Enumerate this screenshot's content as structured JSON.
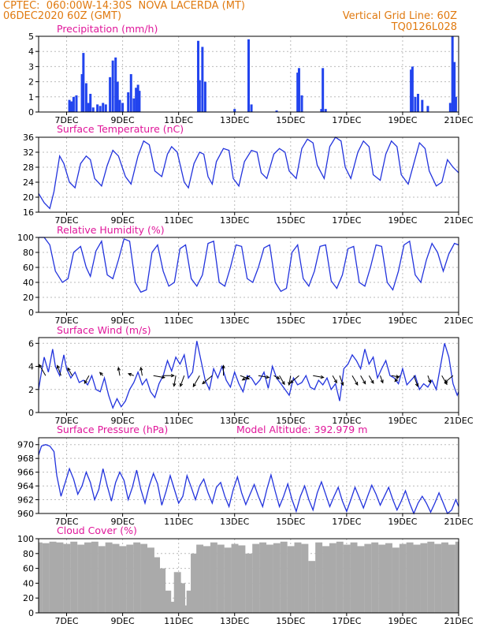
{
  "header": {
    "line1": "CPTEC:  060:00W-14:30S  NOVA LACERDA (MT)",
    "line2": "06DEC2020 60Z (GMT)",
    "grid_note": "Vertical Grid Line: 60Z",
    "code": "TQ0126L028"
  },
  "colors": {
    "header": "#e07a10",
    "title": "#e0169a",
    "line": "#2233dd",
    "bar": "#2244ee",
    "cloud": "#aaaaaa",
    "grid": "#bbbbbb"
  },
  "x_tick_labels": [
    "7DEC",
    "9DEC",
    "11DEC",
    "13DEC",
    "15DEC",
    "17DEC",
    "19DEC",
    "21DEC"
  ],
  "chart_data": [
    {
      "type": "bar",
      "title": "Precipitation (mm/h)",
      "ylim": [
        0,
        5
      ],
      "yticks": [
        0,
        1,
        2,
        3,
        4,
        5
      ],
      "xlim": [
        6.0,
        21.0
      ],
      "x": [
        7.1,
        7.18,
        7.25,
        7.35,
        7.55,
        7.6,
        7.7,
        7.78,
        7.85,
        7.95,
        8.1,
        8.2,
        8.3,
        8.4,
        8.55,
        8.65,
        8.75,
        8.82,
        8.9,
        9.0,
        9.2,
        9.3,
        9.4,
        9.48,
        9.55,
        9.6,
        11.7,
        11.75,
        11.85,
        11.95,
        13.0,
        13.5,
        13.6,
        14.5,
        15.25,
        15.3,
        15.4,
        16.1,
        16.15,
        16.25,
        19.3,
        19.35,
        19.45,
        19.55,
        19.7,
        19.9,
        20.7,
        20.78,
        20.85,
        20.9
      ],
      "values": [
        0.8,
        0.7,
        1.0,
        1.1,
        2.5,
        3.9,
        1.9,
        0.6,
        1.2,
        0.3,
        0.5,
        0.4,
        0.6,
        0.5,
        2.3,
        3.4,
        3.6,
        2.0,
        0.8,
        0.6,
        1.3,
        2.5,
        0.9,
        1.6,
        1.8,
        1.4,
        4.7,
        2.1,
        4.3,
        2.0,
        0.2,
        4.8,
        0.5,
        0.1,
        2.6,
        2.9,
        1.1,
        0.2,
        2.9,
        0.2,
        2.8,
        3.0,
        1.0,
        1.2,
        0.8,
        0.4,
        0.6,
        5.0,
        3.3,
        1.0
      ]
    },
    {
      "type": "line",
      "title": "Surface Temperature (nC)",
      "ylim": [
        16,
        36
      ],
      "yticks": [
        16,
        20,
        24,
        28,
        32,
        36
      ],
      "xlim": [
        6.0,
        21.0
      ],
      "x": [
        6.0,
        6.2,
        6.4,
        6.55,
        6.75,
        6.9,
        7.1,
        7.3,
        7.5,
        7.7,
        7.85,
        8.0,
        8.25,
        8.45,
        8.65,
        8.85,
        9.1,
        9.3,
        9.55,
        9.75,
        9.95,
        10.15,
        10.4,
        10.6,
        10.75,
        10.95,
        11.2,
        11.35,
        11.55,
        11.75,
        11.9,
        12.05,
        12.2,
        12.35,
        12.6,
        12.8,
        12.95,
        13.15,
        13.35,
        13.6,
        13.8,
        13.95,
        14.15,
        14.4,
        14.6,
        14.8,
        14.95,
        15.2,
        15.4,
        15.6,
        15.8,
        15.95,
        16.2,
        16.4,
        16.6,
        16.8,
        16.95,
        17.15,
        17.4,
        17.6,
        17.8,
        17.95,
        18.2,
        18.4,
        18.6,
        18.8,
        18.95,
        19.2,
        19.4,
        19.6,
        19.8,
        19.95,
        20.2,
        20.4,
        20.6,
        20.8,
        21.0
      ],
      "values": [
        21.0,
        18.5,
        17.0,
        21.5,
        31.0,
        29.0,
        24.0,
        22.5,
        29.0,
        31.0,
        30.0,
        25.0,
        23.0,
        28.5,
        32.5,
        31.0,
        25.5,
        23.5,
        31.0,
        35.0,
        34.0,
        27.0,
        25.5,
        31.5,
        33.5,
        32.0,
        24.0,
        22.5,
        29.0,
        32.0,
        31.5,
        25.5,
        23.5,
        29.5,
        33.0,
        32.5,
        25.0,
        23.0,
        29.5,
        32.5,
        32.0,
        26.5,
        25.0,
        31.5,
        33.0,
        32.0,
        27.0,
        25.0,
        33.0,
        35.5,
        34.5,
        28.5,
        25.0,
        33.5,
        36.0,
        35.0,
        28.0,
        25.0,
        32.0,
        35.0,
        33.5,
        26.0,
        24.5,
        31.5,
        35.0,
        33.5,
        26.0,
        23.5,
        29.0,
        34.5,
        33.0,
        27.0,
        23.0,
        24.0,
        30.0,
        28.0,
        26.5
      ]
    },
    {
      "type": "line",
      "title": "Relative Humidity (%)",
      "ylim": [
        0,
        100
      ],
      "yticks": [
        0,
        20,
        40,
        60,
        80,
        100
      ],
      "xlim": [
        6.0,
        21.0
      ],
      "x": [
        6.0,
        6.2,
        6.4,
        6.6,
        6.85,
        7.05,
        7.25,
        7.5,
        7.7,
        7.85,
        8.05,
        8.25,
        8.45,
        8.65,
        8.85,
        9.05,
        9.25,
        9.45,
        9.65,
        9.85,
        10.05,
        10.25,
        10.45,
        10.65,
        10.85,
        11.05,
        11.25,
        11.45,
        11.65,
        11.85,
        12.05,
        12.25,
        12.45,
        12.65,
        12.85,
        13.05,
        13.25,
        13.45,
        13.65,
        13.85,
        14.05,
        14.25,
        14.45,
        14.65,
        14.85,
        15.05,
        15.25,
        15.45,
        15.65,
        15.85,
        16.05,
        16.25,
        16.45,
        16.65,
        16.85,
        17.05,
        17.25,
        17.45,
        17.65,
        17.85,
        18.05,
        18.25,
        18.45,
        18.65,
        18.85,
        19.05,
        19.25,
        19.45,
        19.65,
        19.85,
        20.05,
        20.25,
        20.45,
        20.65,
        20.85,
        21.0
      ],
      "values": [
        100,
        100,
        90,
        55,
        40,
        45,
        80,
        88,
        60,
        48,
        82,
        95,
        50,
        45,
        70,
        98,
        95,
        40,
        27,
        30,
        80,
        90,
        55,
        35,
        40,
        85,
        90,
        45,
        35,
        50,
        92,
        95,
        40,
        35,
        60,
        90,
        88,
        45,
        40,
        60,
        86,
        90,
        40,
        28,
        32,
        80,
        90,
        45,
        35,
        55,
        88,
        90,
        42,
        32,
        50,
        85,
        88,
        40,
        35,
        60,
        90,
        88,
        40,
        30,
        55,
        90,
        95,
        50,
        40,
        70,
        92,
        80,
        55,
        78,
        92,
        90
      ]
    },
    {
      "type": "line",
      "title": "Surface Wind (m/s)",
      "ylim": [
        0,
        6.5
      ],
      "yticks": [
        0,
        2,
        4,
        6
      ],
      "xlim": [
        6.0,
        21.0
      ],
      "x": [
        6.0,
        6.1,
        6.2,
        6.35,
        6.5,
        6.6,
        6.75,
        6.9,
        7.0,
        7.15,
        7.3,
        7.45,
        7.6,
        7.75,
        7.9,
        8.05,
        8.2,
        8.35,
        8.5,
        8.65,
        8.8,
        8.95,
        9.1,
        9.25,
        9.4,
        9.55,
        9.7,
        9.85,
        10.0,
        10.15,
        10.3,
        10.45,
        10.6,
        10.75,
        10.9,
        11.05,
        11.2,
        11.35,
        11.5,
        11.65,
        11.8,
        11.95,
        12.1,
        12.25,
        12.4,
        12.55,
        12.7,
        12.85,
        13.0,
        13.15,
        13.3,
        13.45,
        13.6,
        13.75,
        13.9,
        14.05,
        14.2,
        14.35,
        14.5,
        14.65,
        14.8,
        14.95,
        15.1,
        15.25,
        15.4,
        15.55,
        15.7,
        15.85,
        16.0,
        16.15,
        16.3,
        16.45,
        16.6,
        16.75,
        16.9,
        17.05,
        17.2,
        17.35,
        17.5,
        17.65,
        17.8,
        17.95,
        18.1,
        18.25,
        18.4,
        18.55,
        18.7,
        18.85,
        19.0,
        19.15,
        19.3,
        19.45,
        19.6,
        19.75,
        19.9,
        20.05,
        20.2,
        20.35,
        20.5,
        20.65,
        20.8,
        20.95,
        21.0
      ],
      "values": [
        2.0,
        3.5,
        4.8,
        3.5,
        5.5,
        4.0,
        3.2,
        5.0,
        3.8,
        3.0,
        3.5,
        2.6,
        2.8,
        2.4,
        3.2,
        2.0,
        1.8,
        3.0,
        1.5,
        0.4,
        1.2,
        0.5,
        1.0,
        2.0,
        2.6,
        3.5,
        2.4,
        2.9,
        1.8,
        1.3,
        2.5,
        3.2,
        4.5,
        3.6,
        4.8,
        4.2,
        5.0,
        3.0,
        3.5,
        6.2,
        4.5,
        2.8,
        2.0,
        3.8,
        3.0,
        4.0,
        2.8,
        2.2,
        3.5,
        2.5,
        1.8,
        3.2,
        3.0,
        2.4,
        2.8,
        3.5,
        2.1,
        4.0,
        3.0,
        2.5,
        2.0,
        1.5,
        3.0,
        2.4,
        2.6,
        3.2,
        2.2,
        2.0,
        2.8,
        2.4,
        3.0,
        2.0,
        2.5,
        1.0,
        3.8,
        4.2,
        5.0,
        4.5,
        3.8,
        5.5,
        4.2,
        4.8,
        3.0,
        3.8,
        4.5,
        3.2,
        3.0,
        2.5,
        3.8,
        2.4,
        2.8,
        3.2,
        2.0,
        2.5,
        2.2,
        2.8,
        2.0,
        4.0,
        6.0,
        4.8,
        2.5,
        1.5,
        1.8
      ],
      "vectors": {
        "x": [
          6.25,
          6.8,
          7.2,
          7.8,
          8.3,
          8.9,
          9.4,
          9.7,
          10.1,
          10.45,
          10.9,
          11.2,
          11.75,
          12.2,
          12.6,
          13.2,
          13.55,
          13.85,
          14.4,
          14.6,
          15.0,
          15.3,
          15.8,
          16.5,
          16.75,
          17.2,
          17.5,
          17.8,
          18.2,
          18.6,
          18.9,
          19.4,
          19.9,
          20.4,
          20.8
        ],
        "speed": [
          2.0,
          1.7,
          1.4,
          1.4,
          0.7,
          1.3,
          0.9,
          1.3,
          1.8,
          1.7,
          1.7,
          1.8,
          2.0,
          2.0,
          1.6,
          1.5,
          1.4,
          1.7,
          1.0,
          1.6,
          1.5,
          1.8,
          1.7,
          1.3,
          1.6,
          1.7,
          1.5,
          1.4,
          1.2,
          1.2,
          1.2,
          1.8,
          1.2,
          1.6,
          1.7
        ],
        "dir_deg": [
          120,
          110,
          120,
          -120,
          135,
          100,
          160,
          100,
          -10,
          0,
          -100,
          -110,
          -120,
          -140,
          90,
          -20,
          -150,
          -10,
          -30,
          -60,
          -100,
          -140,
          -10,
          -60,
          -70,
          -60,
          -60,
          -60,
          -70,
          -10,
          -130,
          -70,
          -70,
          -60,
          -140
        ]
      }
    },
    {
      "type": "line",
      "title": "Surface Pressure (hPa)",
      "annotation": "Model Altitude: 392.979 m",
      "ylim": [
        960,
        971
      ],
      "yticks": [
        960,
        962,
        964,
        966,
        968,
        970
      ],
      "xlim": [
        6.0,
        21.0
      ],
      "x": [
        6.0,
        6.1,
        6.25,
        6.4,
        6.55,
        6.65,
        6.8,
        6.95,
        7.1,
        7.25,
        7.4,
        7.55,
        7.7,
        7.85,
        8.0,
        8.15,
        8.3,
        8.45,
        8.6,
        8.75,
        8.9,
        9.05,
        9.2,
        9.35,
        9.5,
        9.65,
        9.8,
        9.95,
        10.1,
        10.25,
        10.4,
        10.55,
        10.7,
        10.85,
        11.0,
        11.15,
        11.3,
        11.45,
        11.6,
        11.75,
        11.9,
        12.05,
        12.2,
        12.35,
        12.5,
        12.65,
        12.8,
        12.95,
        13.1,
        13.25,
        13.4,
        13.55,
        13.7,
        13.85,
        14.0,
        14.15,
        14.3,
        14.45,
        14.6,
        14.75,
        14.9,
        15.05,
        15.2,
        15.35,
        15.5,
        15.65,
        15.8,
        15.95,
        16.1,
        16.25,
        16.4,
        16.55,
        16.7,
        16.85,
        17.0,
        17.15,
        17.3,
        17.45,
        17.6,
        17.75,
        17.9,
        18.05,
        18.2,
        18.35,
        18.5,
        18.65,
        18.8,
        18.95,
        19.1,
        19.25,
        19.4,
        19.55,
        19.7,
        19.85,
        20.0,
        20.15,
        20.3,
        20.45,
        20.6,
        20.75,
        20.9,
        21.0
      ],
      "values": [
        968.5,
        969.8,
        970.0,
        969.8,
        969.0,
        965.5,
        962.5,
        964.5,
        966.5,
        965.0,
        962.8,
        964.0,
        966.0,
        964.5,
        962.0,
        963.5,
        966.5,
        964.0,
        961.8,
        964.5,
        966.0,
        964.8,
        962.0,
        963.8,
        966.3,
        963.5,
        961.5,
        964.0,
        965.8,
        964.3,
        961.2,
        963.2,
        965.5,
        963.5,
        961.5,
        962.5,
        965.5,
        963.8,
        962.0,
        964.0,
        965.0,
        963.0,
        961.5,
        963.8,
        964.5,
        962.5,
        961.0,
        963.5,
        965.3,
        963.0,
        961.3,
        962.8,
        964.2,
        962.5,
        961.0,
        963.5,
        965.6,
        963.2,
        961.0,
        962.5,
        964.3,
        962.0,
        960.3,
        962.5,
        964.0,
        962.0,
        960.5,
        963.0,
        964.6,
        962.8,
        961.0,
        962.5,
        963.8,
        961.8,
        960.3,
        962.0,
        963.8,
        962.3,
        960.8,
        962.5,
        964.1,
        962.8,
        961.2,
        962.5,
        963.8,
        962.0,
        960.5,
        961.8,
        963.3,
        961.5,
        960.0,
        961.5,
        962.5,
        961.5,
        960.2,
        961.5,
        963.0,
        961.5,
        960.0,
        960.5,
        962.0,
        961.0
      ]
    },
    {
      "type": "bar",
      "title": "Cloud Cover (%)",
      "ylim": [
        0,
        100
      ],
      "yticks": [
        0,
        20,
        40,
        60,
        80,
        100
      ],
      "xlim": [
        6.0,
        21.0
      ],
      "x": [
        6.0,
        6.25,
        6.5,
        6.75,
        7.0,
        7.25,
        7.5,
        7.75,
        8.0,
        8.25,
        8.5,
        8.75,
        9.0,
        9.25,
        9.5,
        9.75,
        10.0,
        10.2,
        10.4,
        10.6,
        10.8,
        10.95,
        11.1,
        11.25,
        11.4,
        11.55,
        11.75,
        12.0,
        12.25,
        12.5,
        12.75,
        13.0,
        13.25,
        13.5,
        13.75,
        14.0,
        14.25,
        14.5,
        14.75,
        15.0,
        15.25,
        15.5,
        15.75,
        16.0,
        16.25,
        16.5,
        16.75,
        17.0,
        17.25,
        17.5,
        17.75,
        18.0,
        18.25,
        18.5,
        18.75,
        19.0,
        19.25,
        19.5,
        19.75,
        20.0,
        20.25,
        20.5,
        20.75,
        21.0
      ],
      "values": [
        95,
        94,
        96,
        95,
        93,
        96,
        92,
        95,
        96,
        90,
        95,
        93,
        90,
        92,
        95,
        93,
        88,
        75,
        60,
        30,
        15,
        55,
        40,
        10,
        30,
        80,
        92,
        90,
        95,
        92,
        88,
        93,
        91,
        80,
        93,
        95,
        92,
        94,
        96,
        90,
        95,
        93,
        70,
        95,
        90,
        94,
        96,
        92,
        95,
        90,
        93,
        95,
        92,
        94,
        88,
        93,
        95,
        92,
        94,
        96,
        93,
        95,
        92,
        96
      ]
    }
  ]
}
